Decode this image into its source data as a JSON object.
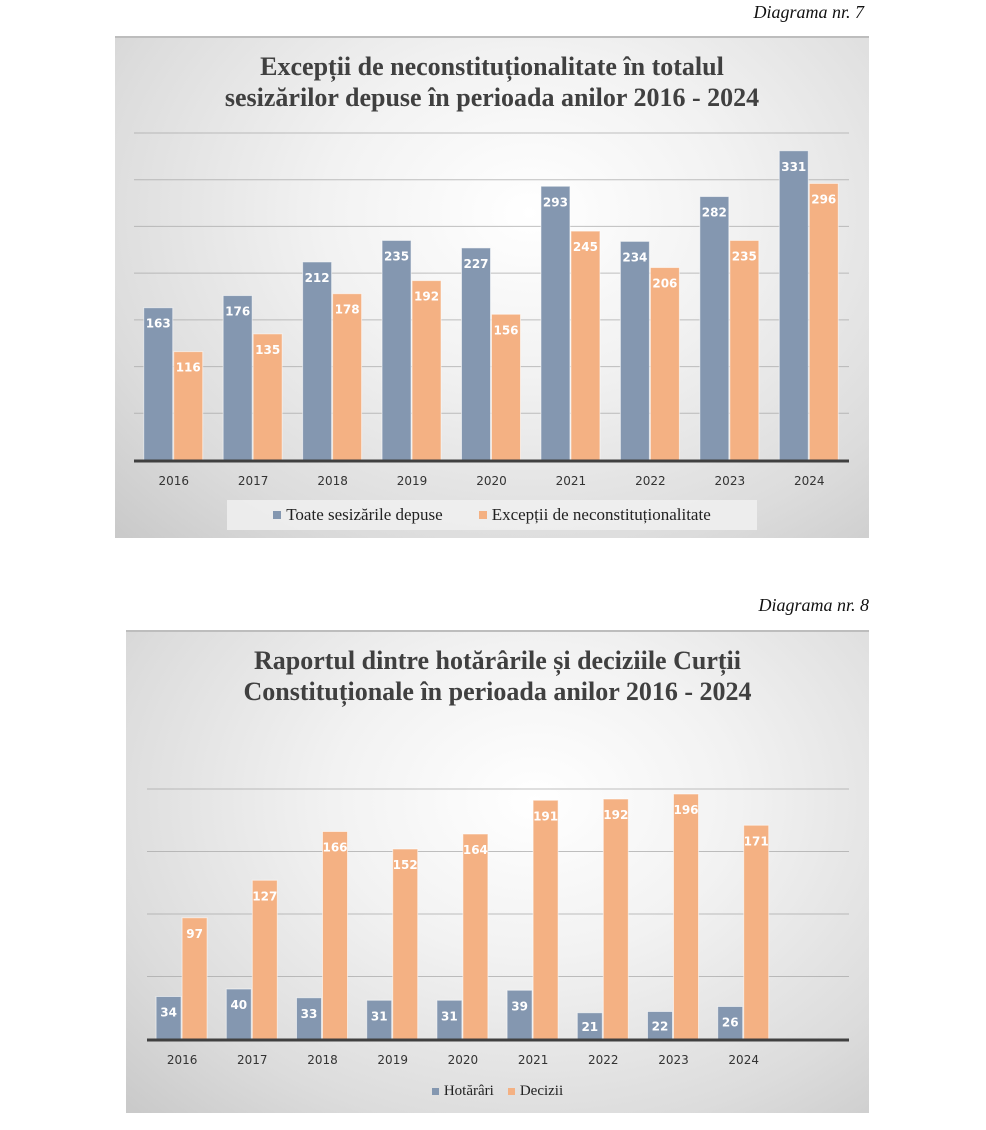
{
  "page": {
    "caption_1": "Diagrama nr. 7",
    "caption_2": "Diagrama nr. 8"
  },
  "colors": {
    "blue": "#8497b0",
    "orange": "#f4b183",
    "axis": "#404040",
    "grid": "#a6a6a6"
  },
  "chart_data": [
    {
      "type": "bar",
      "title_line_1": "Excepții de neconstituționalitate în totalul",
      "title_line_2": "sesizărilor depuse în perioada anilor 2016 - 2024",
      "categories": [
        "2016",
        "2017",
        "2018",
        "2019",
        "2020",
        "2021",
        "2022",
        "2023",
        "2024"
      ],
      "series": [
        {
          "name": "Toate sesizările depuse",
          "color": "#8497b0",
          "values": [
            163,
            176,
            212,
            235,
            227,
            293,
            234,
            282,
            331
          ]
        },
        {
          "name": "Excepții de neconstituționalitate",
          "color": "#f4b183",
          "values": [
            116,
            135,
            178,
            192,
            156,
            245,
            206,
            235,
            296
          ]
        }
      ],
      "xlabel": "",
      "ylabel": "",
      "ylim": [
        0,
        350
      ],
      "grid_step": 50,
      "grid": true,
      "y_tick_labels_shown": false,
      "legend_position": "bottom"
    },
    {
      "type": "bar",
      "title_line_1": "Raportul dintre hotărârile și deciziile Curții",
      "title_line_2": "Constituționale în perioada anilor 2016 - 2024",
      "categories": [
        "2016",
        "2017",
        "2018",
        "2019",
        "2020",
        "2021",
        "2022",
        "2023",
        "2024"
      ],
      "series": [
        {
          "name": "Hotărâri",
          "color": "#8497b0",
          "values": [
            34,
            40,
            33,
            31,
            31,
            39,
            21,
            22,
            26
          ]
        },
        {
          "name": "Decizii",
          "color": "#f4b183",
          "values": [
            97,
            127,
            166,
            152,
            164,
            191,
            192,
            196,
            171
          ]
        }
      ],
      "xlabel": "",
      "ylabel": "",
      "ylim": [
        0,
        200
      ],
      "grid_step": 50,
      "grid": true,
      "y_tick_labels_shown": false,
      "legend_position": "bottom"
    }
  ]
}
